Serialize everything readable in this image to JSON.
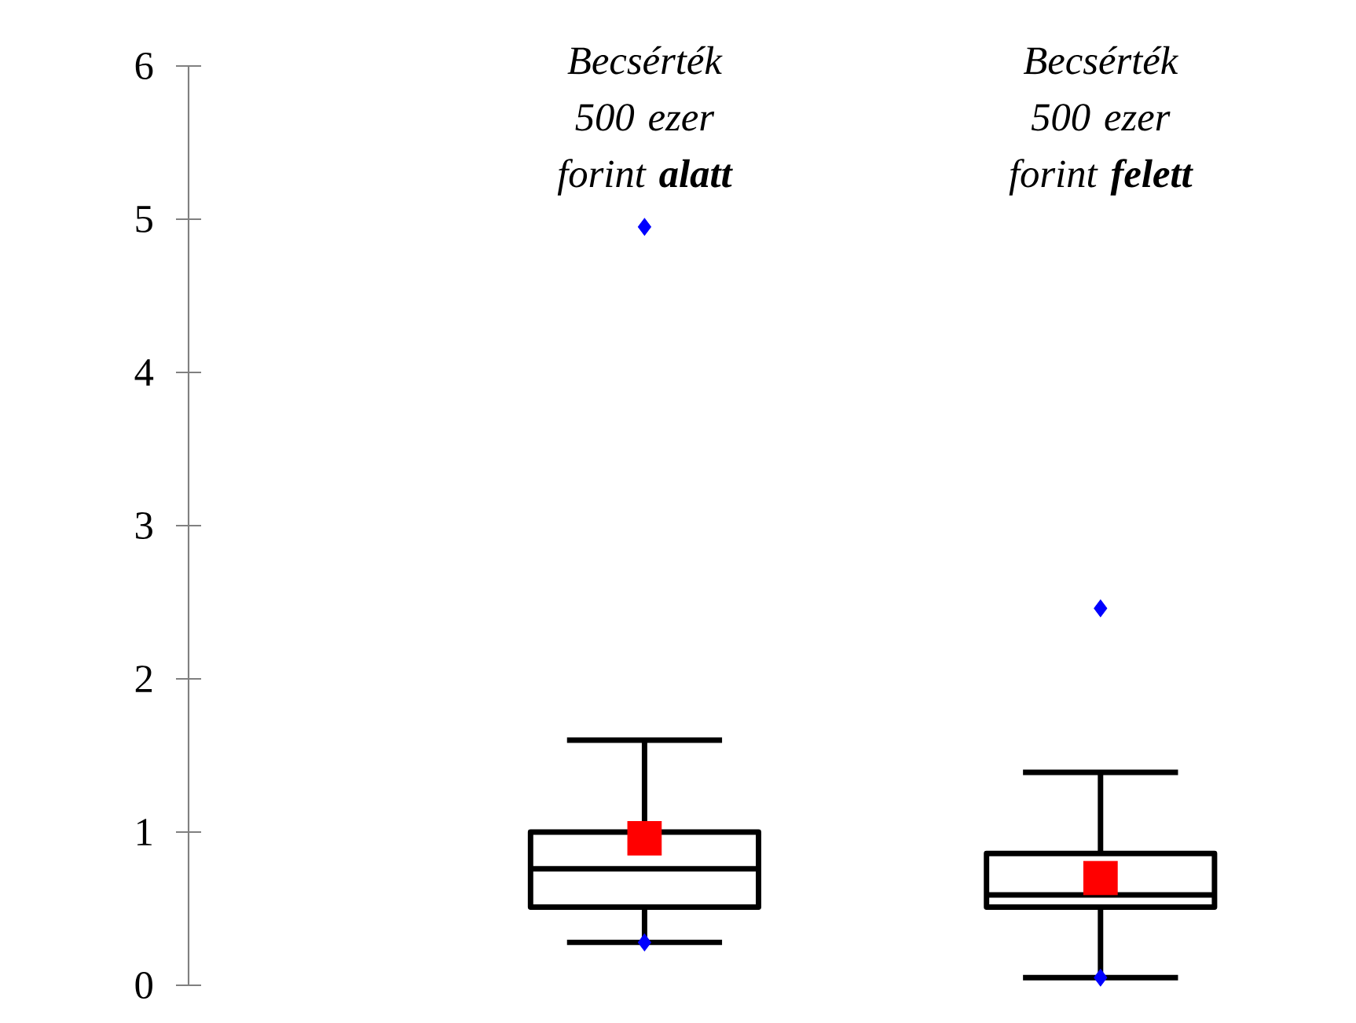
{
  "chart_data": {
    "type": "box",
    "categories": [
      "Becsérték 500 ezer forint **alatt**",
      "Becsérték 500 ezer forint **felett**"
    ],
    "boxes": [
      {
        "low": 0.28,
        "q1": 0.51,
        "median": 0.76,
        "q3": 1.0,
        "high": 1.6,
        "mean": 0.96,
        "outliers": [
          0.28,
          4.95
        ]
      },
      {
        "low": 0.05,
        "q1": 0.51,
        "median": 0.59,
        "q3": 0.86,
        "high": 1.39,
        "mean": 0.7,
        "outliers": [
          0.05,
          2.46
        ]
      }
    ],
    "color": "#000000",
    "ylim": [
      0,
      6
    ],
    "yticks": [
      0,
      1,
      2,
      3,
      4,
      5,
      6
    ]
  }
}
